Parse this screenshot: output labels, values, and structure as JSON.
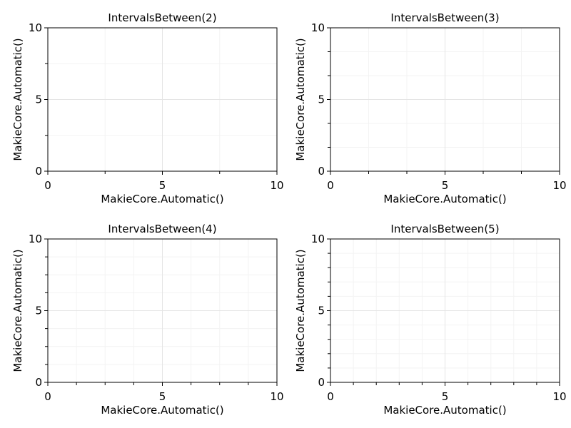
{
  "chart_data": [
    {
      "type": "scatter",
      "title": "IntervalsBetween(2)",
      "xlabel": "MakieCore.Automatic()",
      "ylabel": "MakieCore.Automatic()",
      "xlim": [
        0,
        10
      ],
      "ylim": [
        0,
        10
      ],
      "xticks": [
        "0",
        "5",
        "10"
      ],
      "yticks": [
        "0",
        "5",
        "10"
      ],
      "minor_intervals": 2,
      "grid": true,
      "series": []
    },
    {
      "type": "scatter",
      "title": "IntervalsBetween(3)",
      "xlabel": "MakieCore.Automatic()",
      "ylabel": "MakieCore.Automatic()",
      "xlim": [
        0,
        10
      ],
      "ylim": [
        0,
        10
      ],
      "xticks": [
        "0",
        "5",
        "10"
      ],
      "yticks": [
        "0",
        "5",
        "10"
      ],
      "minor_intervals": 3,
      "grid": true,
      "series": []
    },
    {
      "type": "scatter",
      "title": "IntervalsBetween(4)",
      "xlabel": "MakieCore.Automatic()",
      "ylabel": "MakieCore.Automatic()",
      "xlim": [
        0,
        10
      ],
      "ylim": [
        0,
        10
      ],
      "xticks": [
        "0",
        "5",
        "10"
      ],
      "yticks": [
        "0",
        "5",
        "10"
      ],
      "minor_intervals": 4,
      "grid": true,
      "series": []
    },
    {
      "type": "scatter",
      "title": "IntervalsBetween(5)",
      "xlabel": "MakieCore.Automatic()",
      "ylabel": "MakieCore.Automatic()",
      "xlim": [
        0,
        10
      ],
      "ylim": [
        0,
        10
      ],
      "xticks": [
        "0",
        "5",
        "10"
      ],
      "yticks": [
        "0",
        "5",
        "10"
      ],
      "minor_intervals": 5,
      "grid": true,
      "series": []
    }
  ]
}
